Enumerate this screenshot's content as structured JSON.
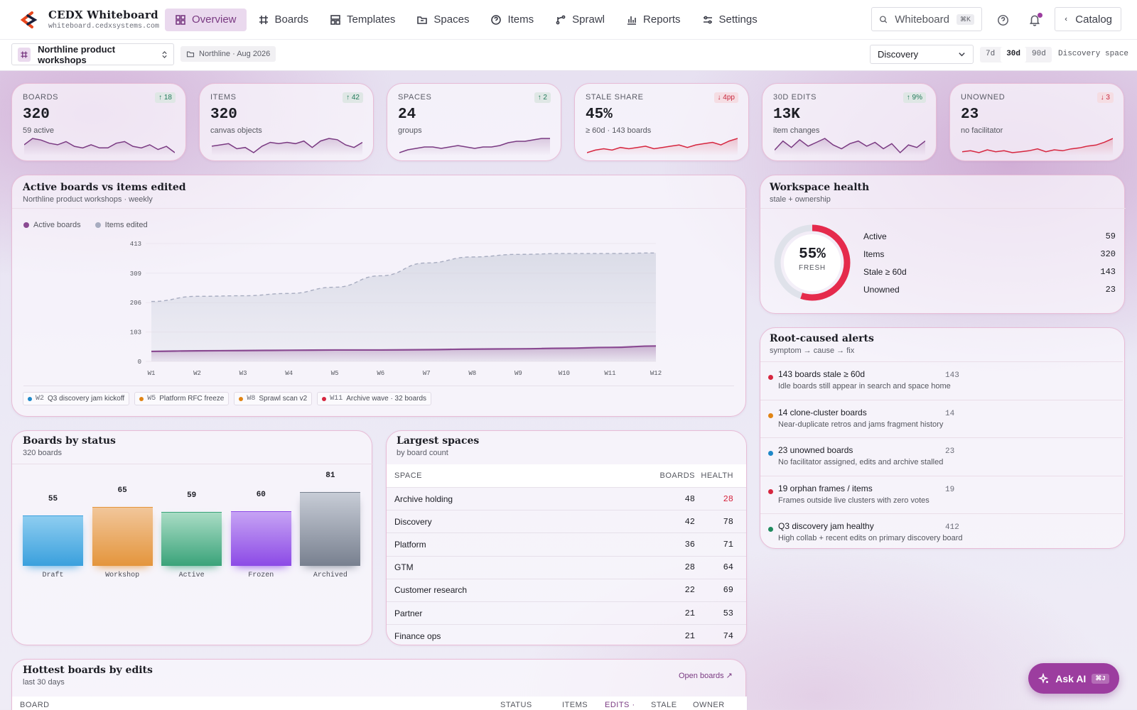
{
  "app": {
    "title": "CEDX Whiteboard",
    "subtitle": "whiteboard.cedxsystems.com"
  },
  "nav": [
    {
      "label": "Overview",
      "icon": "grid-icon",
      "active": true
    },
    {
      "label": "Boards",
      "icon": "hash-icon"
    },
    {
      "label": "Templates",
      "icon": "layout-icon"
    },
    {
      "label": "Spaces",
      "icon": "folder-icon"
    },
    {
      "label": "Items",
      "icon": "help-circle-icon"
    },
    {
      "label": "Sprawl",
      "icon": "branch-icon"
    },
    {
      "label": "Reports",
      "icon": "bar-chart-icon"
    },
    {
      "label": "Settings",
      "icon": "sliders-icon"
    }
  ],
  "search": {
    "label": "Whiteboard",
    "shortcut": "⌘K"
  },
  "catalog_label": "Catalog",
  "subbar": {
    "board": "Northline product workshops",
    "crumb": "Northline · Aug 2026",
    "space_select": "Discovery",
    "ranges": [
      "7d",
      "30d",
      "90d"
    ],
    "active_range": "30d",
    "space_label": "Discovery space"
  },
  "kpis": [
    {
      "label": "BOARDS",
      "value": "320",
      "sub": "59 active",
      "delta": "↑ 18",
      "dir": "up",
      "color": "#7a3a82",
      "spark": [
        12,
        16,
        15,
        13,
        12,
        14,
        11,
        10,
        12,
        10,
        10,
        13,
        14,
        11,
        10,
        12,
        9,
        11,
        7
      ]
    },
    {
      "label": "ITEMS",
      "value": "320",
      "sub": "canvas objects",
      "delta": "↑ 42",
      "dir": "up",
      "color": "#7a3a82",
      "spark": [
        10,
        11,
        12,
        8,
        9,
        5,
        10,
        13,
        12,
        13,
        12,
        14,
        9,
        14,
        16,
        15,
        11,
        9,
        13
      ]
    },
    {
      "label": "SPACES",
      "value": "24",
      "sub": "groups",
      "delta": "↑ 2",
      "dir": "up",
      "color": "#7a3a82",
      "spark": [
        6,
        8,
        9,
        10,
        10,
        9,
        10,
        11,
        10,
        9,
        10,
        10,
        11,
        13,
        14,
        14,
        15,
        16,
        16
      ]
    },
    {
      "label": "STALE SHARE",
      "value": "45%",
      "sub": "≥ 60d · 143 boards",
      "delta": "↓ 4pp",
      "dir": "down",
      "color": "#d6263f",
      "spark": [
        8,
        10,
        11,
        10,
        12,
        11,
        12,
        13,
        11,
        12,
        13,
        14,
        12,
        14,
        15,
        16,
        14,
        17,
        19
      ]
    },
    {
      "label": "30D EDITS",
      "value": "13K",
      "sub": "item changes",
      "delta": "↑ 9%",
      "dir": "up",
      "color": "#7a3a82",
      "spark": [
        7,
        14,
        9,
        15,
        10,
        13,
        16,
        11,
        8,
        12,
        14,
        10,
        13,
        8,
        12,
        5,
        11,
        9,
        14
      ]
    },
    {
      "label": "UNOWNED",
      "value": "23",
      "sub": "no facilitator",
      "delta": "↓ 3",
      "dir": "down",
      "color": "#d6263f",
      "spark": [
        10,
        11,
        9,
        12,
        10,
        11,
        9,
        10,
        11,
        13,
        10,
        12,
        11,
        13,
        14,
        16,
        17,
        20,
        24
      ]
    }
  ],
  "main_chart": {
    "title": "Active boards vs items edited",
    "subtitle": "Northline product workshops · weekly"
  },
  "chart_data": {
    "type": "area",
    "categories": [
      "W1",
      "W2",
      "W3",
      "W4",
      "W5",
      "W6",
      "W7",
      "W8",
      "W9",
      "W10",
      "W11",
      "W12"
    ],
    "series": [
      {
        "name": "Active boards",
        "color": "#8a4a92",
        "values": [
          35,
          37,
          38,
          39,
          40,
          40,
          41,
          43,
          44,
          46,
          49,
          54
        ]
      },
      {
        "name": "Items edited",
        "color": "#a7acc0",
        "values": [
          210,
          228,
          230,
          238,
          260,
          300,
          345,
          366,
          375,
          378,
          378,
          380
        ]
      }
    ],
    "yticks": [
      0,
      103,
      206,
      309,
      413
    ],
    "ylim": [
      0,
      413
    ]
  },
  "events": [
    {
      "week": "W2",
      "text": "Q3 discovery jam kickoff",
      "color": "#1e88c8"
    },
    {
      "week": "W5",
      "text": "Platform RFC freeze",
      "color": "#e08414"
    },
    {
      "week": "W8",
      "text": "Sprawl scan v2",
      "color": "#e08414"
    },
    {
      "week": "W11",
      "text": "Archive wave · 32 boards",
      "color": "#d6263f"
    }
  ],
  "health": {
    "title": "Workspace health",
    "subtitle": "stale + ownership",
    "pct": "55%",
    "pct_value": 55,
    "pct_label": "FRESH",
    "stats": [
      {
        "label": "Active",
        "value": "59"
      },
      {
        "label": "Items",
        "value": "320"
      },
      {
        "label": "Stale ≥ 60d",
        "value": "143"
      },
      {
        "label": "Unowned",
        "value": "23"
      }
    ]
  },
  "alerts": {
    "title": "Root-caused alerts",
    "subtitle": "symptom → cause → fix",
    "items": [
      {
        "title": "143 boards stale ≥ 60d",
        "count": "143",
        "desc": "Idle boards still appear in search and space home",
        "color": "#d6263f"
      },
      {
        "title": "14 clone-cluster boards",
        "count": "14",
        "desc": "Near-duplicate retros and jams fragment history",
        "color": "#e08414"
      },
      {
        "title": "23 unowned boards",
        "count": "23",
        "desc": "No facilitator assigned, edits and archive stalled",
        "color": "#1e88c8"
      },
      {
        "title": "19 orphan frames / items",
        "count": "19",
        "desc": "Frames outside live clusters with zero votes",
        "color": "#d6263f"
      },
      {
        "title": "Q3 discovery jam healthy",
        "count": "412",
        "desc": "High collab + recent edits on primary discovery board",
        "color": "#1f8a5e"
      }
    ]
  },
  "status_chart": {
    "title": "Boards by status",
    "subtitle": "320 boards",
    "bars": [
      {
        "label": "Draft",
        "value": 55,
        "top": "#3aa0dd",
        "bottom": "#8ecdf0"
      },
      {
        "label": "Workshop",
        "value": 65,
        "top": "#e4953c",
        "bottom": "#f1c69a"
      },
      {
        "label": "Active",
        "value": 59,
        "top": "#3aa37a",
        "bottom": "#a9dcc5"
      },
      {
        "label": "Frozen",
        "value": 60,
        "top": "#8c4ae6",
        "bottom": "#c6a3f4"
      },
      {
        "label": "Archived",
        "value": 81,
        "top": "#78808f",
        "bottom": "#c7ccd6"
      }
    ]
  },
  "spaces": {
    "title": "Largest spaces",
    "subtitle": "by board count",
    "headers": [
      "SPACE",
      "BOARDS",
      "HEALTH"
    ],
    "rows": [
      {
        "name": "Archive holding",
        "boards": "48",
        "health": "28",
        "bad": true
      },
      {
        "name": "Discovery",
        "boards": "42",
        "health": "78"
      },
      {
        "name": "Platform",
        "boards": "36",
        "health": "71"
      },
      {
        "name": "GTM",
        "boards": "28",
        "health": "64"
      },
      {
        "name": "Customer research",
        "boards": "22",
        "health": "69"
      },
      {
        "name": "Partner",
        "boards": "21",
        "health": "53"
      },
      {
        "name": "Finance ops",
        "boards": "21",
        "health": "74"
      }
    ]
  },
  "hottest": {
    "title": "Hottest boards by edits",
    "subtitle": "last 30 days",
    "link": "Open boards ↗",
    "headers": [
      "BOARD",
      "STATUS",
      "ITEMS",
      "EDITS ·",
      "STALE",
      "OWNER"
    ]
  },
  "ask": {
    "label": "Ask AI",
    "shortcut": "⌘J"
  }
}
